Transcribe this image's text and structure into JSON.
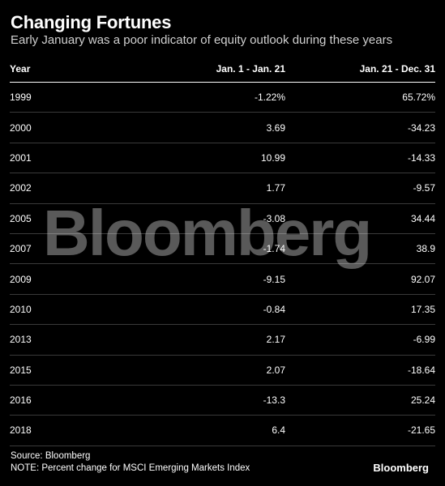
{
  "title": "Changing Fortunes",
  "subtitle": "Early January was a poor indicator of equity outlook during these years",
  "table": {
    "headers": [
      "Year",
      "Jan. 1 - Jan. 21",
      "Jan. 21 - Dec. 31"
    ]
  },
  "chart_data": {
    "type": "table",
    "title": "Changing Fortunes",
    "columns": [
      "Year",
      "Jan. 1 - Jan. 21",
      "Jan. 21 - Dec. 31"
    ],
    "rows": [
      [
        "1999",
        "-1.22%",
        "65.72%"
      ],
      [
        "2000",
        "3.69",
        "-34.23"
      ],
      [
        "2001",
        "10.99",
        "-14.33"
      ],
      [
        "2002",
        "1.77",
        "-9.57"
      ],
      [
        "2005",
        "-3.08",
        "34.44"
      ],
      [
        "2007",
        "-1.74",
        "38.9"
      ],
      [
        "2009",
        "-9.15",
        "92.07"
      ],
      [
        "2010",
        "-0.84",
        "17.35"
      ],
      [
        "2013",
        "2.17",
        "-6.99"
      ],
      [
        "2015",
        "2.07",
        "-18.64"
      ],
      [
        "2016",
        "-13.3",
        "25.24"
      ],
      [
        "2018",
        "6.4",
        "-21.65"
      ]
    ]
  },
  "watermark": "Bloomberg",
  "footer": {
    "source": "Source: Bloomberg",
    "note": "NOTE: Percent change for MSCI Emerging Markets Index",
    "logo": "Bloomberg"
  }
}
